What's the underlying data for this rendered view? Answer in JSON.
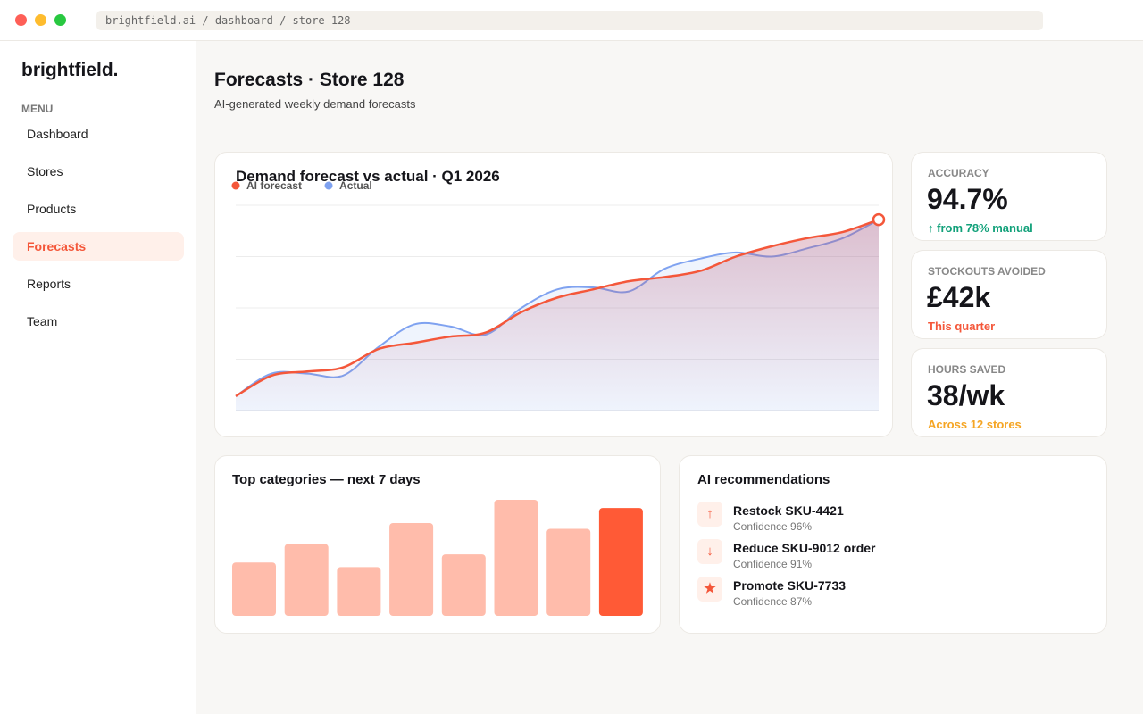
{
  "browser": {
    "url": "brightfield.ai / dashboard / store–128"
  },
  "sidebar": {
    "brand": "brightfield.",
    "menu_label": "MENU",
    "items": [
      "Dashboard",
      "Stores",
      "Products",
      "Forecasts",
      "Reports",
      "Team"
    ],
    "active": 3
  },
  "header": {
    "title": "Forecasts · Store 128",
    "subtitle": "AI-generated weekly demand forecasts"
  },
  "chart_data": [
    {
      "type": "line",
      "title": "Demand forecast vs actual · Q1 2026",
      "series": [
        {
          "name": "AI forecast",
          "color": "#f4573a",
          "values": [
            7,
            17,
            19,
            21,
            30,
            33,
            36,
            38,
            48,
            55,
            59,
            63,
            65,
            68,
            75,
            80,
            84,
            87,
            93
          ]
        },
        {
          "name": "Actual",
          "color": "#7fa2f0",
          "values": [
            7,
            18,
            18,
            17,
            31,
            42,
            41,
            37,
            50,
            59,
            60,
            58,
            69,
            74,
            77,
            75,
            79,
            84,
            93
          ]
        }
      ],
      "ylim": [
        0,
        100
      ],
      "yticks": [
        0,
        25,
        50,
        75,
        100
      ],
      "grid": true,
      "legend": "top-left"
    },
    {
      "type": "bar",
      "title": "Top categories — next 7 days",
      "values": [
        46,
        62,
        42,
        80,
        53,
        100,
        75,
        93
      ],
      "colors": [
        "#ffbcab",
        "#ffbcab",
        "#ffbcab",
        "#ffbcab",
        "#ffbcab",
        "#ffbcab",
        "#ffbcab",
        "#ff5a36"
      ],
      "ylim": [
        0,
        100
      ]
    }
  ],
  "stats": [
    {
      "label": "ACCURACY",
      "value": "94.7%",
      "note": "↑ from 78% manual",
      "note_color": "#12a17a"
    },
    {
      "label": "STOCKOUTS AVOIDED",
      "value": "£42k",
      "note": "This quarter",
      "note_color": "#f4573a"
    },
    {
      "label": "HOURS SAVED",
      "value": "38/wk",
      "note": "Across 12 stores",
      "note_color": "#f5a524"
    }
  ],
  "recommendations": {
    "title": "AI recommendations",
    "items": [
      {
        "icon": "↑",
        "title": "Restock SKU-4421",
        "detail": "Confidence 96%"
      },
      {
        "icon": "↓",
        "title": "Reduce SKU-9012 order",
        "detail": "Confidence 91%"
      },
      {
        "icon": "★",
        "title": "Promote SKU-7733",
        "detail": "Confidence 87%"
      }
    ]
  }
}
